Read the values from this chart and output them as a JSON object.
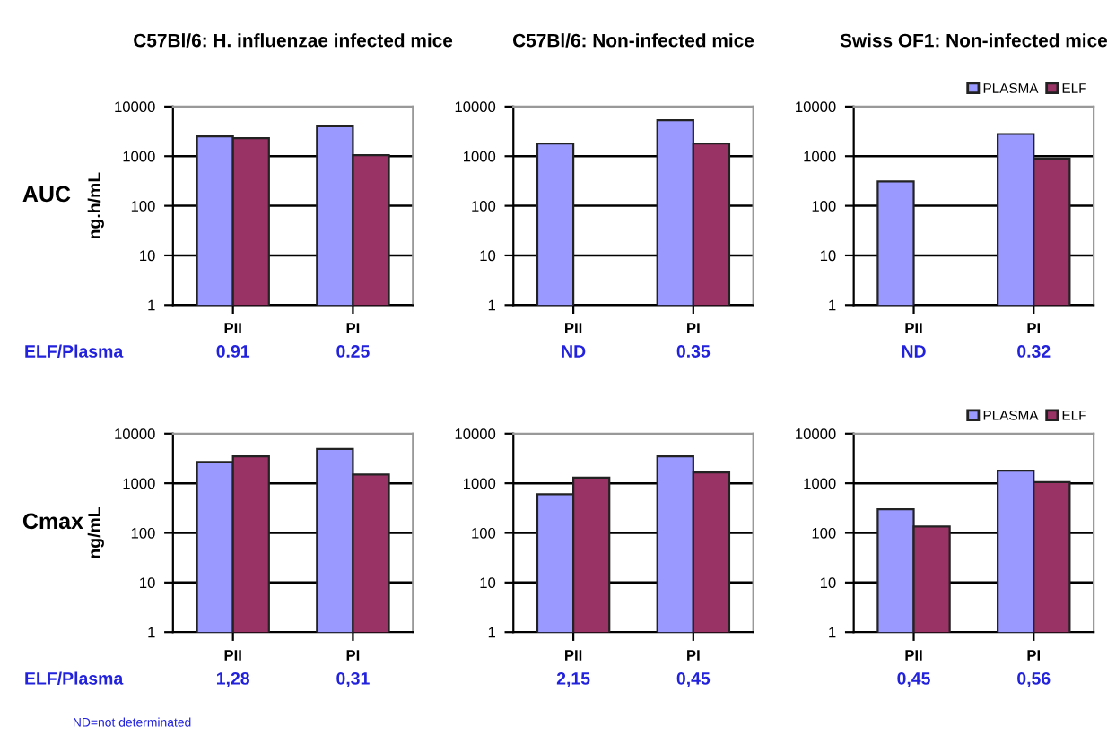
{
  "chart_data": [
    {
      "type": "bar",
      "title": "C57Bl/6: H. influenzae infected mice",
      "ylabel": "ng.h/mL",
      "categories": [
        "PII",
        "PI"
      ],
      "log": "y",
      "ylim": [
        1,
        10000
      ],
      "yticks": [
        1,
        10,
        100,
        1000,
        10000
      ],
      "grid": "y",
      "series": [
        {
          "color": "#9999ff",
          "values": [
            2500,
            4000
          ]
        },
        {
          "color": "#993366",
          "values": [
            2300,
            1050
          ]
        }
      ],
      "annotations": [
        "AUC",
        "ELF/Plasma",
        "0.91",
        "0.25"
      ]
    },
    {
      "type": "bar",
      "title": "C57Bl/6: Non-infected mice",
      "categories": [
        "PII",
        "PI"
      ],
      "log": "y",
      "ylim": [
        1,
        10000
      ],
      "yticks": [
        1,
        10,
        100,
        1000,
        10000
      ],
      "grid": "y",
      "series": [
        {
          "color": "#9999ff",
          "values": [
            1800,
            5300
          ]
        },
        {
          "color": "#993366",
          "values": [
            null,
            1800
          ]
        }
      ],
      "annotations": [
        "ND",
        "0.35"
      ]
    },
    {
      "type": "bar",
      "title": "Swiss OF1: Non-infected mice",
      "categories": [
        "PII",
        "PI"
      ],
      "log": "y",
      "ylim": [
        1,
        10000
      ],
      "yticks": [
        1,
        10,
        100,
        1000,
        10000
      ],
      "grid": "y",
      "legend": "top right",
      "series": [
        {
          "name": "PLASMA",
          "color": "#9999ff",
          "values": [
            310,
            2800
          ]
        },
        {
          "name": "ELF",
          "color": "#993366",
          "values": [
            null,
            900
          ]
        }
      ],
      "annotations": [
        "ND",
        "0.32"
      ]
    },
    {
      "type": "bar",
      "ylabel": "ng/mL",
      "categories": [
        "PII",
        "PI"
      ],
      "log": "y",
      "ylim": [
        1,
        10000
      ],
      "yticks": [
        1,
        10,
        100,
        1000,
        10000
      ],
      "grid": "y",
      "series": [
        {
          "color": "#9999ff",
          "values": [
            2700,
            4900
          ]
        },
        {
          "color": "#993366",
          "values": [
            3500,
            1500
          ]
        }
      ],
      "annotations": [
        "Cmax",
        "ELF/Plasma",
        "ND=not determinated",
        "1,28",
        "0,31"
      ]
    },
    {
      "type": "bar",
      "categories": [
        "PII",
        "PI"
      ],
      "log": "y",
      "ylim": [
        1,
        10000
      ],
      "yticks": [
        1,
        10,
        100,
        1000,
        10000
      ],
      "grid": "y",
      "series": [
        {
          "color": "#9999ff",
          "values": [
            600,
            3500
          ]
        },
        {
          "color": "#993366",
          "values": [
            1300,
            1650
          ]
        }
      ],
      "annotations": [
        "2,15",
        "0,45"
      ]
    },
    {
      "type": "bar",
      "categories": [
        "PII",
        "PI"
      ],
      "log": "y",
      "ylim": [
        1,
        10000
      ],
      "yticks": [
        1,
        10,
        100,
        1000,
        10000
      ],
      "grid": "y",
      "legend": "top right",
      "series": [
        {
          "name": "PLASMA",
          "color": "#9999ff",
          "values": [
            300,
            1800
          ]
        },
        {
          "name": "ELF",
          "color": "#993366",
          "values": [
            135,
            1050
          ]
        }
      ],
      "annotations": [
        "0,45",
        "0,56"
      ]
    }
  ]
}
